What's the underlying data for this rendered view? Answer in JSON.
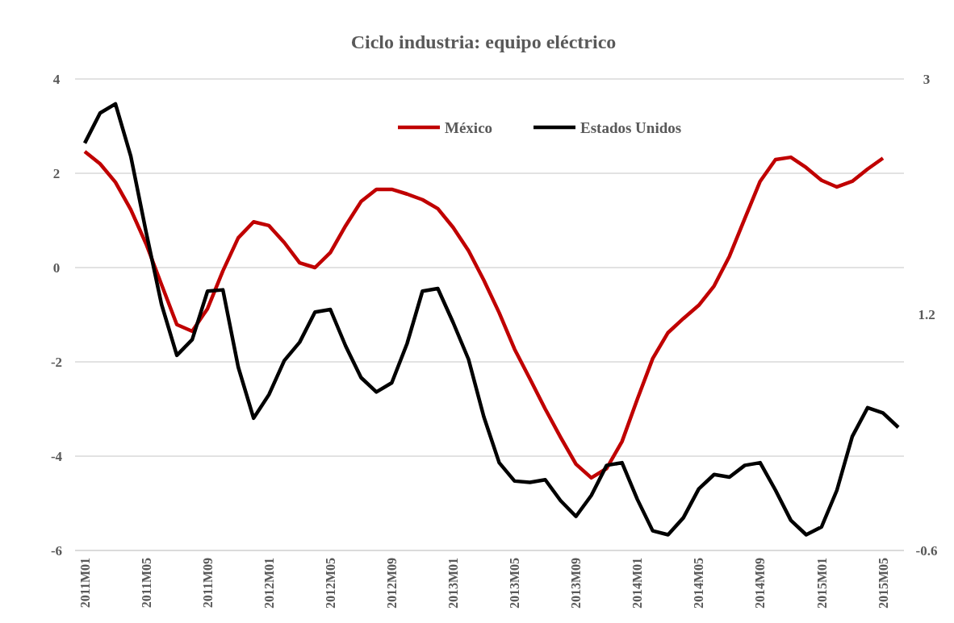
{
  "chart_data": {
    "type": "line",
    "title": "Ciclo industria: equipo eléctrico",
    "categories": [
      "2011M01",
      null,
      null,
      null,
      "2011M05",
      null,
      null,
      null,
      "2011M09",
      null,
      null,
      null,
      "2012M01",
      null,
      null,
      null,
      "2012M05",
      null,
      null,
      null,
      "2012M09",
      null,
      null,
      null,
      "2013M01",
      null,
      null,
      null,
      "2013M05",
      null,
      null,
      null,
      "2013M09",
      null,
      null,
      null,
      "2014M01",
      null,
      null,
      null,
      "2014M05",
      null,
      null,
      null,
      "2014M09",
      null,
      null,
      null,
      "2015M01",
      null,
      null,
      null,
      "2015M05",
      null
    ],
    "series": [
      {
        "name": "México",
        "color": "#c00000",
        "values": [
          2.46,
          2.2,
          1.81,
          1.23,
          0.5,
          -0.36,
          -1.21,
          -1.35,
          -0.87,
          -0.07,
          0.63,
          0.97,
          0.89,
          0.53,
          0.1,
          0.0,
          0.32,
          0.89,
          1.4,
          1.66,
          1.66,
          1.56,
          1.44,
          1.25,
          0.85,
          0.36,
          -0.27,
          -0.96,
          -1.73,
          -2.36,
          -3.0,
          -3.6,
          -4.17,
          -4.46,
          -4.26,
          -3.69,
          -2.79,
          -1.93,
          -1.38,
          -1.08,
          -0.8,
          -0.39,
          0.24,
          1.04,
          1.83,
          2.29,
          2.34,
          2.12,
          1.85,
          1.71,
          1.83,
          2.09,
          2.32,
          null
        ]
      },
      {
        "name": "Estados Unidos",
        "color": "#000000",
        "axis": "y2",
        "values": [
          2.51,
          2.74,
          2.81,
          2.41,
          1.83,
          1.28,
          0.89,
          1.01,
          1.38,
          1.39,
          0.8,
          0.41,
          0.59,
          0.85,
          0.99,
          1.22,
          1.24,
          0.96,
          0.72,
          0.61,
          0.68,
          0.98,
          1.38,
          1.4,
          1.14,
          0.86,
          0.42,
          0.07,
          -0.07,
          -0.08,
          -0.06,
          -0.22,
          -0.34,
          -0.18,
          0.05,
          0.07,
          -0.21,
          -0.45,
          -0.48,
          -0.35,
          -0.13,
          -0.02,
          -0.04,
          0.05,
          0.07,
          -0.14,
          -0.37,
          -0.48,
          -0.42,
          -0.14,
          0.27,
          0.49,
          0.45,
          0.34
        ]
      }
    ],
    "ylim": [
      -6,
      4
    ],
    "yticks": [
      -6,
      -4,
      -2,
      0,
      2,
      4
    ],
    "y2lim": [
      -0.6,
      3
    ],
    "y2ticks": [
      -0.6,
      1.2,
      3
    ],
    "grid": "y",
    "legend": "top",
    "line_style": "solid",
    "marker": "none"
  }
}
